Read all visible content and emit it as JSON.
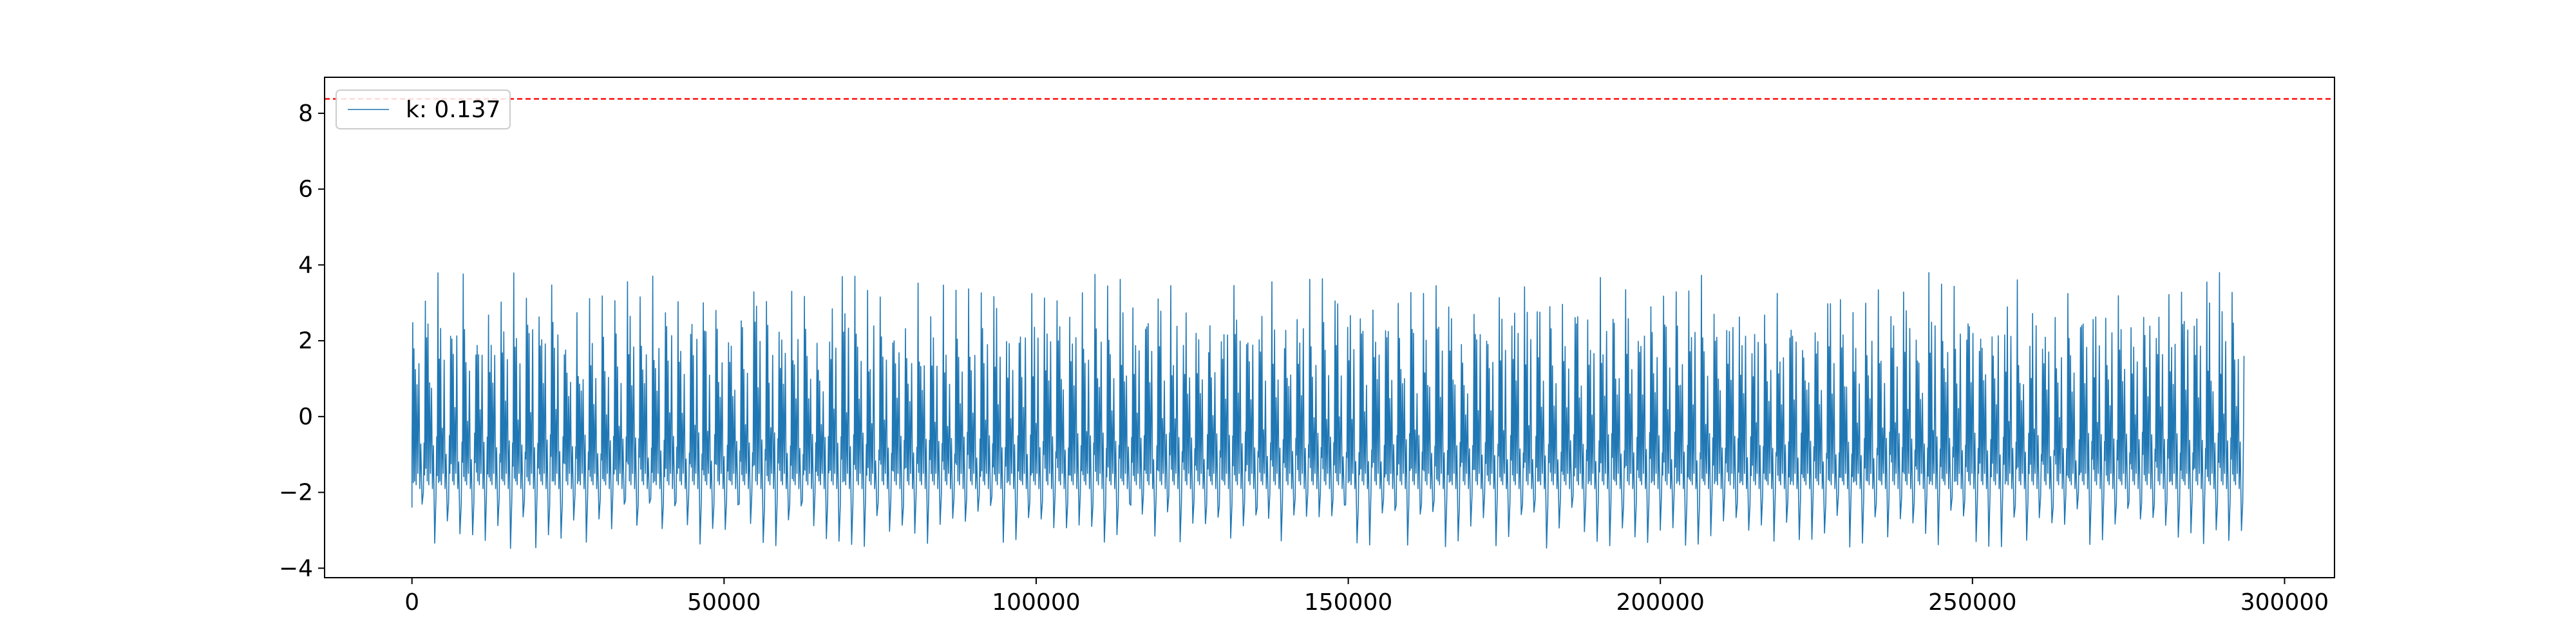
{
  "chart_data": {
    "type": "line",
    "title": "",
    "xlabel": "",
    "ylabel": "",
    "xlim": [
      -14000,
      308000
    ],
    "ylim": [
      -4.25,
      8.95
    ],
    "x_ticks": [
      0,
      50000,
      100000,
      150000,
      200000,
      250000,
      300000
    ],
    "x_tick_labels": [
      "0",
      "50000",
      "100000",
      "150000",
      "200000",
      "250000",
      "300000"
    ],
    "y_ticks": [
      -4,
      -2,
      0,
      2,
      4,
      6,
      8
    ],
    "y_tick_labels": [
      "−4",
      "−2",
      "0",
      "2",
      "4",
      "6",
      "8"
    ],
    "grid": false,
    "legend_position": "top-left",
    "series": [
      {
        "name": "k: 0.137",
        "color": "#1f77b4",
        "x_range": [
          0,
          293500
        ],
        "approx_stats": {
          "min": -3.6,
          "max": 3.8,
          "upper_peak_typical": 3.2,
          "lower_trough_typical": -2.8
        },
        "pattern": "dense periodic signal oscillating roughly between -3.5 and 3.8"
      }
    ],
    "threshold": {
      "y": 8.38,
      "color": "#ff0000",
      "style": "dashed"
    }
  }
}
